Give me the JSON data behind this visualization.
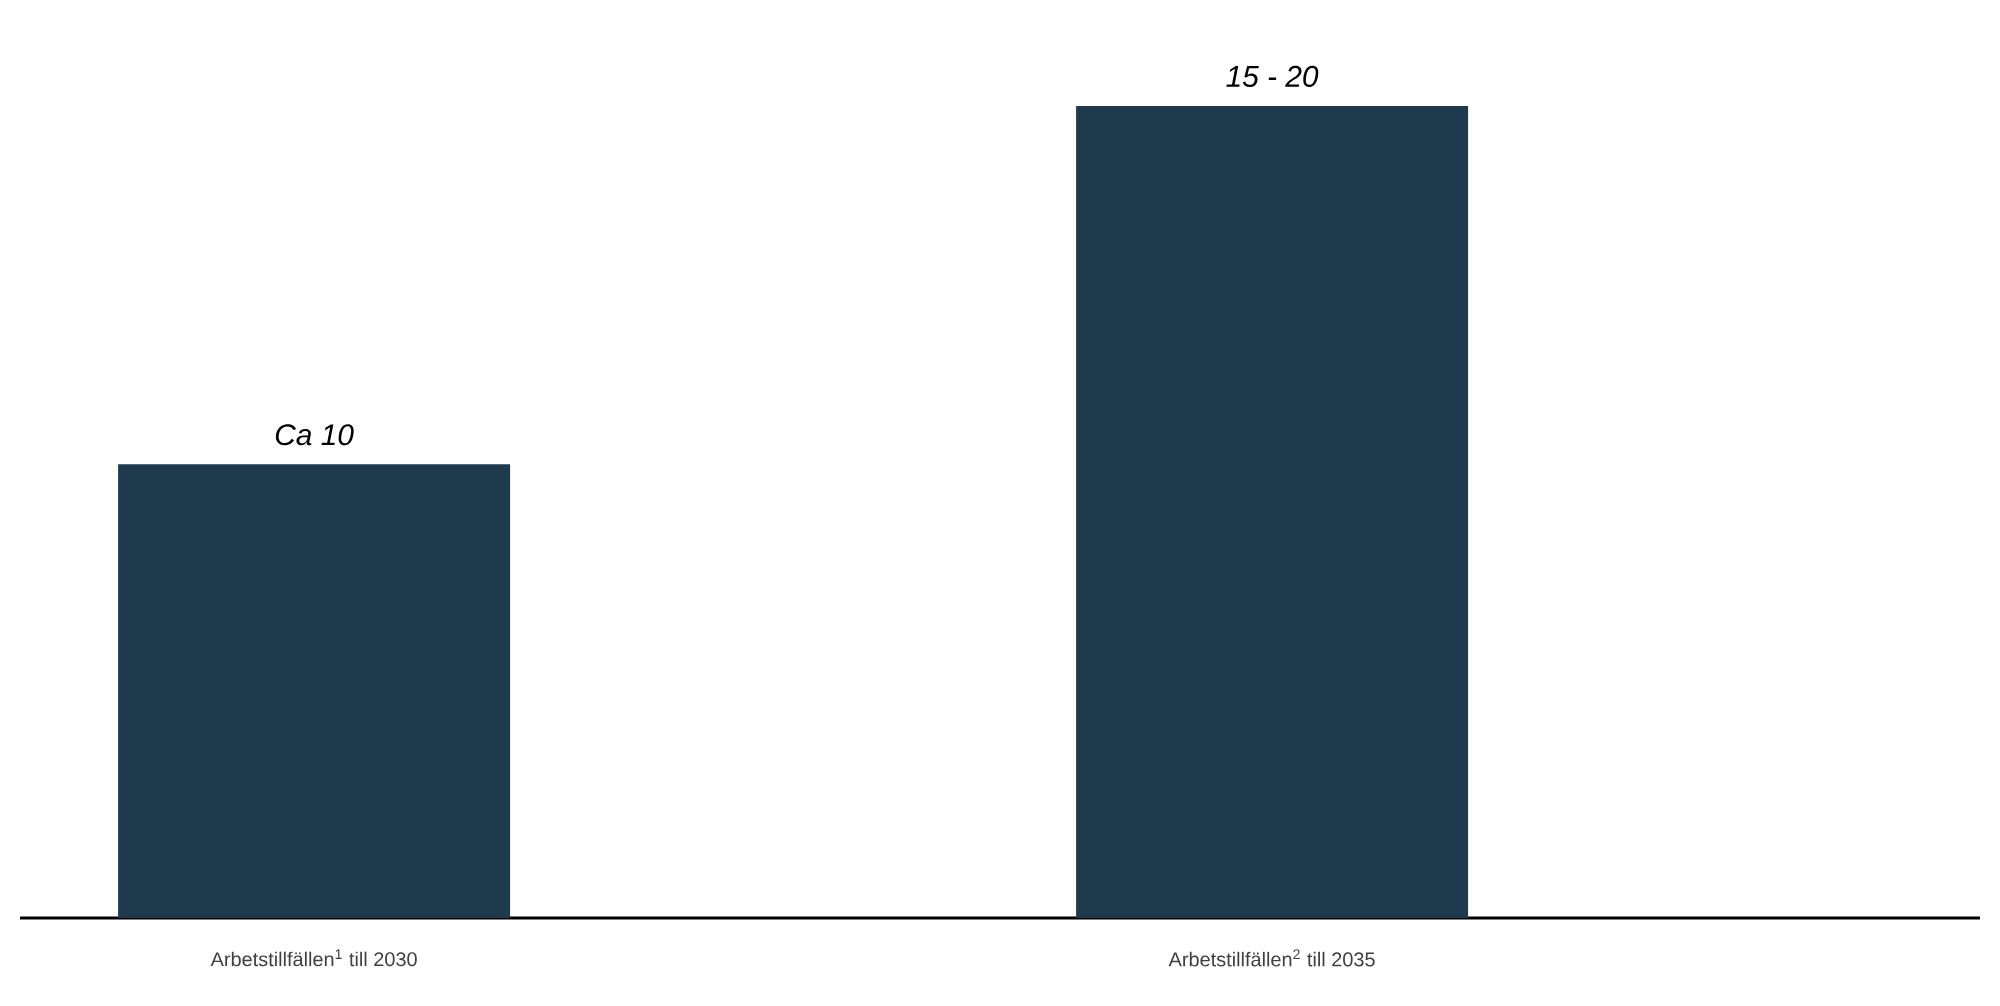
{
  "chart_data": {
    "type": "bar",
    "categories": [
      "Arbetstillfällen$^{1}$ till 2030",
      "Arbetstillfällen$^{2}$ till 2035"
    ],
    "values": [
      10,
      17.9
    ],
    "value_labels": [
      "*Ca 10*",
      "*15 - 20*"
    ],
    "color": "#1e3a4c"
  }
}
